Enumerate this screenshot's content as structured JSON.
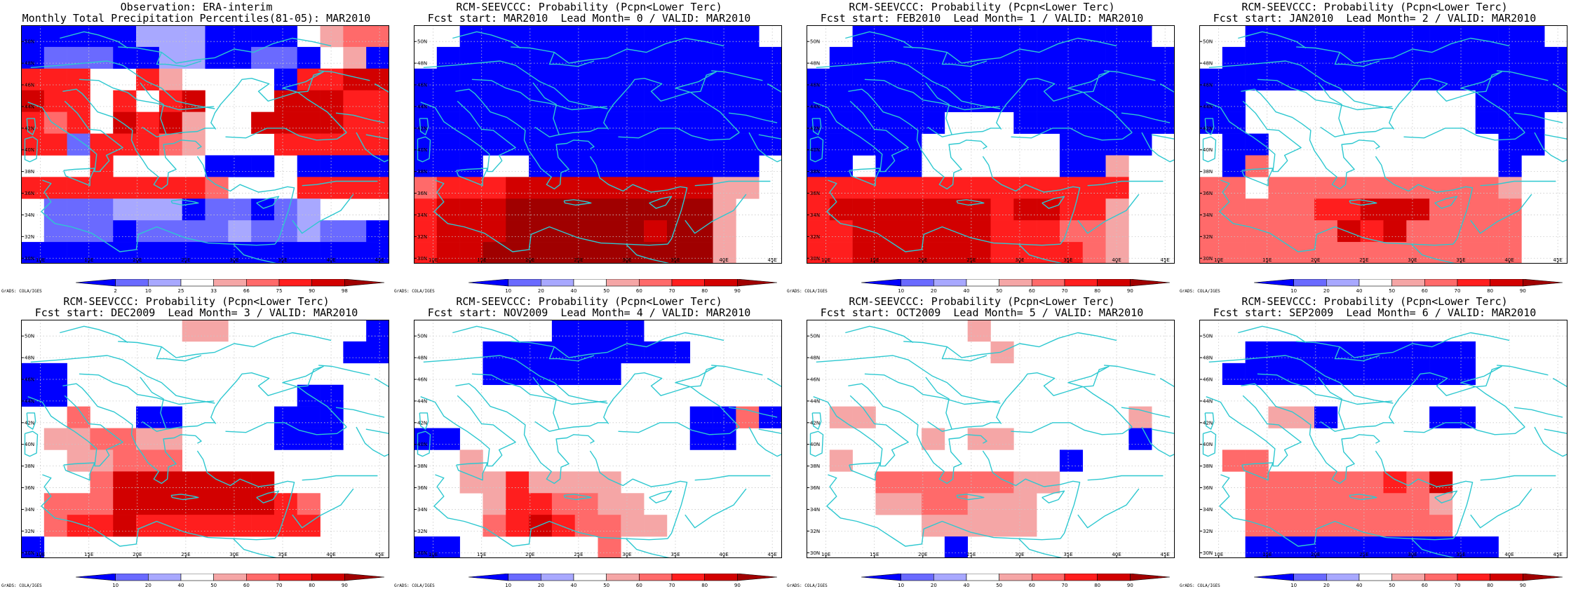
{
  "panels": [
    {
      "title1": "Observation: ERA-interim",
      "title2": "Monthly Total Precipitation Percentiles(81-05): MAR2010",
      "scale": [
        "2",
        "10",
        "25",
        "33",
        "66",
        "75",
        "90",
        "98"
      ],
      "grid": "obs"
    },
    {
      "title1": "RCM-SEEVCCC: Probability (Pcpn<Lower Terc)",
      "title2": "Fcst start: MAR2010  Lead Month= 0 / VALID: MAR2010",
      "scale": [
        "10",
        "20",
        "40",
        "50",
        "60",
        "70",
        "80",
        "90"
      ],
      "grid": "m0"
    },
    {
      "title1": "RCM-SEEVCCC: Probability (Pcpn<Lower Terc)",
      "title2": "Fcst start: FEB2010  Lead Month= 1 / VALID: MAR2010",
      "scale": [
        "10",
        "20",
        "40",
        "50",
        "60",
        "70",
        "80",
        "90"
      ],
      "grid": "m1"
    },
    {
      "title1": "RCM-SEEVCCC: Probability (Pcpn<Lower Terc)",
      "title2": "Fcst start: JAN2010  Lead Month= 2 / VALID: MAR2010",
      "scale": [
        "10",
        "20",
        "40",
        "50",
        "60",
        "70",
        "80",
        "90"
      ],
      "grid": "m2"
    },
    {
      "title1": "RCM-SEEVCCC: Probability (Pcpn<Lower Terc)",
      "title2": "Fcst start: DEC2009  Lead Month= 3 / VALID: MAR2010",
      "scale": [
        "10",
        "20",
        "40",
        "50",
        "60",
        "70",
        "80",
        "90"
      ],
      "grid": "m3"
    },
    {
      "title1": "RCM-SEEVCCC: Probability (Pcpn<Lower Terc)",
      "title2": "Fcst start: NOV2009  Lead Month= 4 / VALID: MAR2010",
      "scale": [
        "10",
        "20",
        "40",
        "50",
        "60",
        "70",
        "80",
        "90"
      ],
      "grid": "m4"
    },
    {
      "title1": "RCM-SEEVCCC: Probability (Pcpn<Lower Terc)",
      "title2": "Fcst start: OCT2009  Lead Month= 5 / VALID: MAR2010",
      "scale": [
        "10",
        "20",
        "40",
        "50",
        "60",
        "70",
        "80",
        "90"
      ],
      "grid": "m5"
    },
    {
      "title1": "RCM-SEEVCCC: Probability (Pcpn<Lower Terc)",
      "title2": "Fcst start: SEP2009  Lead Month= 6 / VALID: MAR2010",
      "scale": [
        "10",
        "20",
        "40",
        "50",
        "60",
        "70",
        "80",
        "90"
      ],
      "grid": "m6"
    }
  ],
  "axes": {
    "lon_labels": [
      "10E",
      "15E",
      "20E",
      "25E",
      "30E",
      "35E",
      "40E",
      "45E"
    ],
    "lat_labels": [
      "30N",
      "32N",
      "34N",
      "36N",
      "38N",
      "40N",
      "42N",
      "44N",
      "46N",
      "48N",
      "50N"
    ]
  },
  "credit": "GrADS: COLA/IGES",
  "colors": {
    "coast": "#2ec8d0",
    "scale": [
      "#0000ff",
      "#6a6aff",
      "#a8a8ff",
      "#ffffff",
      "#f5a6a6",
      "#ff6a6a",
      "#ff1e1e",
      "#d20000",
      "#a00000"
    ]
  },
  "fields": {
    "obs": [
      "1111133311110455",
      "1222113311221041",
      "6660064000016677",
      "7660606700077766",
      "6560767400777766",
      "6626665400066666",
      "0006000011101111",
      "6666666650006666",
      "0222333122123000",
      "0222122223223221",
      "1111111111111111"
    ],
    "m0": [
      "0011111111111110",
      "0111111111111111",
      "1111111111111111",
      "1111111111111111",
      "1111111111111111",
      "1111111111111111",
      "1110011111111110",
      "5666777777777440",
      "6777888888888400",
      "6777888888788400",
      "6778888888888400"
    ],
    "m1": [
      "0011111111111110",
      "0111111111111111",
      "1111111111111111",
      "1111111111111111",
      "1111110001111111",
      "1111100000011110",
      "1101100000011400",
      "6666666666666600",
      "6777777767766400",
      "6677777766655400",
      "6677777766665400"
    ],
    "m2": [
      "0011111111111110",
      "0111111111111111",
      "1111111111111111",
      "1100000000001111",
      "1100000000001110",
      "0110000000000110",
      "0150000000000100",
      "5505555555555400",
      "5555566777555500",
      "5555557675555500",
      "5555555555555500"
    ],
    "m3": [
      "0000000440000001",
      "0000000000000011",
      "1100000000000000",
      "1100000000001100",
      "0050011000011100",
      "0445544000011100",
      "0044555000000000",
      "0005777777700000",
      "0555777777765000",
      "0566766666666000",
      "1000000000000000"
    ],
    "m4": [
      "0000001111000000",
      "0001111111110000",
      "0001111110000000",
      "0000000000000000",
      "0000000000001151",
      "1100000000001100",
      "0040000000000000",
      "0044644440000000",
      "0004665544000000",
      "0005676554400000",
      "1100000050000000"
    ],
    "m5": [
      "0000000400000000",
      "0000000040000000",
      "0000000000000000",
      "0000000000000000",
      "0440000000000040",
      "0000040440000010",
      "0400000000010000",
      "0005555554400000",
      "0004455444000000",
      "0000044444000000",
      "0000001000000000"
    ],
    "m6": [
      "0000000000000000",
      "0011111111110000",
      "0111111111110000",
      "0000000000000000",
      "0004410000110000",
      "0000000000000000",
      "0550000000000000",
      "0055555565700000",
      "0055555555400000",
      "0055555555500000",
      "0011111111111000"
    ]
  }
}
